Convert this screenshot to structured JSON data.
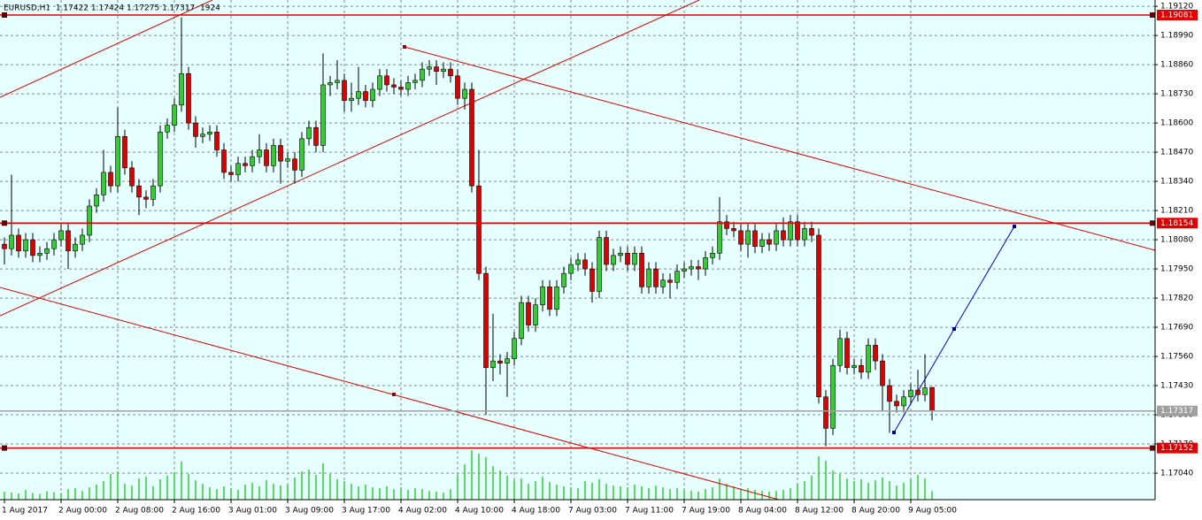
{
  "chart_data": {
    "type": "candlestick",
    "title": "EURUSD,H1  1.17422 1.17424 1.17275 1.17317  1924",
    "background": "#e6ffff",
    "grid": true,
    "grid_color": "#7f8c8c",
    "up_color": "#32cd32",
    "down_color": "#e00000",
    "volume_color": "#32cd32",
    "ylim": [
      1.16922,
      1.19148
    ],
    "yticks": [
      {
        "value": 1.1912,
        "label": "1.19120"
      },
      {
        "value": 1.1899,
        "label": "1.18990"
      },
      {
        "value": 1.1886,
        "label": "1.18860"
      },
      {
        "value": 1.1873,
        "label": "1.18730"
      },
      {
        "value": 1.186,
        "label": "1.18600"
      },
      {
        "value": 1.1847,
        "label": "1.18470"
      },
      {
        "value": 1.1834,
        "label": "1.18340"
      },
      {
        "value": 1.1821,
        "label": "1.18210"
      },
      {
        "value": 1.1808,
        "label": "1.18080"
      },
      {
        "value": 1.1795,
        "label": "1.17950"
      },
      {
        "value": 1.1782,
        "label": "1.17820"
      },
      {
        "value": 1.1769,
        "label": "1.17690"
      },
      {
        "value": 1.1756,
        "label": "1.17560"
      },
      {
        "value": 1.1743,
        "label": "1.17430"
      },
      {
        "value": 1.173,
        "label": "1.17300"
      },
      {
        "value": 1.1717,
        "label": "1.17170"
      },
      {
        "value": 1.1704,
        "label": "1.17040"
      }
    ],
    "hlines": [
      {
        "value": 1.19081,
        "color": "#e00000"
      },
      {
        "value": 1.18154,
        "color": "#e00000"
      },
      {
        "value": 1.17152,
        "color": "#e00000"
      },
      {
        "value": 1.17317,
        "color": "#a0a0a0"
      }
    ],
    "categories": [
      "1 Aug 2017",
      null,
      null,
      null,
      null,
      null,
      null,
      null,
      "2 Aug 00:00",
      null,
      null,
      null,
      null,
      null,
      null,
      null,
      "2 Aug 08:00",
      null,
      null,
      null,
      null,
      null,
      null,
      null,
      "2 Aug 16:00",
      null,
      null,
      null,
      null,
      null,
      null,
      null,
      "3 Aug 01:00",
      null,
      null,
      null,
      null,
      null,
      null,
      null,
      "3 Aug 09:00",
      null,
      null,
      null,
      null,
      null,
      null,
      null,
      "3 Aug 17:00",
      null,
      null,
      null,
      null,
      null,
      null,
      null,
      "4 Aug 02:00",
      null,
      null,
      null,
      null,
      null,
      null,
      null,
      "4 Aug 10:00",
      null,
      null,
      null,
      null,
      null,
      null,
      null,
      "4 Aug 18:00",
      null,
      null,
      null,
      null,
      null,
      null,
      null,
      "7 Aug 03:00",
      null,
      null,
      null,
      null,
      null,
      null,
      null,
      "7 Aug 11:00",
      null,
      null,
      null,
      null,
      null,
      null,
      null,
      "7 Aug 19:00",
      null,
      null,
      null,
      null,
      null,
      null,
      null,
      "8 Aug 04:00",
      null,
      null,
      null,
      null,
      null,
      null,
      null,
      "8 Aug 12:00",
      null,
      null,
      null,
      null,
      null,
      null,
      null,
      "8 Aug 20:00",
      null,
      null,
      null,
      null,
      null,
      null,
      null,
      "9 Aug 05:00",
      null,
      null,
      null
    ],
    "open": [
      1.1806,
      1.1804,
      1.181,
      1.1803,
      1.1808,
      1.1801,
      1.1802,
      1.1804,
      1.1808,
      1.1812,
      1.1803,
      1.1806,
      1.181,
      1.1823,
      1.1828,
      1.1838,
      1.1832,
      1.1854,
      1.184,
      1.1832,
      1.1827,
      1.1826,
      1.1832,
      1.1856,
      1.1859,
      1.1868,
      1.1882,
      1.186,
      1.1854,
      1.1855,
      1.1856,
      1.1848,
      1.1838,
      1.1837,
      1.1842,
      1.1841,
      1.1845,
      1.1848,
      1.1841,
      1.185,
      1.1843,
      1.1844,
      1.1839,
      1.1853,
      1.1858,
      1.185,
      1.1877,
      1.1878,
      1.1879,
      1.187,
      1.1871,
      1.1874,
      1.187,
      1.1875,
      1.1881,
      1.1877,
      1.1876,
      1.1875,
      1.1878,
      1.1879,
      1.1884,
      1.1885,
      1.1883,
      1.1884,
      1.1881,
      1.1871,
      1.1875,
      1.1832,
      1.1793,
      1.1751,
      1.1754,
      1.1753,
      1.1755,
      1.1764,
      1.178,
      1.177,
      1.1779,
      1.1787,
      1.1777,
      1.1787,
      1.1793,
      1.1797,
      1.1799,
      1.1795,
      1.1785,
      1.1809,
      1.1797,
      1.1801,
      1.1802,
      1.1797,
      1.1802,
      1.1787,
      1.1795,
      1.1787,
      1.179,
      1.1789,
      1.1794,
      1.1795,
      1.1796,
      1.1795,
      1.18,
      1.1802,
      1.1816,
      1.1813,
      1.1812,
      1.1806,
      1.1812,
      1.1805,
      1.1808,
      1.1806,
      1.1812,
      1.1808,
      1.1816,
      1.1808,
      1.1813,
      1.181,
      1.1738,
      1.1724,
      1.1752,
      1.1764,
      1.1751,
      1.1752,
      1.1749,
      1.1761,
      1.1754,
      1.1743,
      1.1736,
      1.1734,
      1.1738,
      1.1741,
      1.1739,
      1.17422
    ],
    "high": [
      1.1809,
      1.1837,
      1.1813,
      1.1811,
      1.1811,
      1.1805,
      1.1807,
      1.1811,
      1.1815,
      1.1815,
      1.1809,
      1.1813,
      1.1826,
      1.1831,
      1.1848,
      1.1841,
      1.1867,
      1.1857,
      1.1843,
      1.1835,
      1.183,
      1.1835,
      1.1859,
      1.1862,
      1.1871,
      1.1907,
      1.1885,
      1.1863,
      1.1858,
      1.1859,
      1.1859,
      1.1851,
      1.1841,
      1.1845,
      1.1845,
      1.1848,
      1.1855,
      1.1851,
      1.1853,
      1.1853,
      1.1847,
      1.1847,
      1.1856,
      1.1861,
      1.1861,
      1.1891,
      1.1881,
      1.1888,
      1.1882,
      1.1878,
      1.1885,
      1.1877,
      1.1878,
      1.1884,
      1.1884,
      1.188,
      1.1879,
      1.1881,
      1.1882,
      1.1887,
      1.1888,
      1.1888,
      1.1887,
      1.1887,
      1.1884,
      1.1878,
      1.1878,
      1.1848,
      1.1796,
      1.1775,
      1.1757,
      1.1758,
      1.1767,
      1.1783,
      1.1783,
      1.1782,
      1.179,
      1.179,
      1.179,
      1.1796,
      1.18,
      1.1802,
      1.1802,
      1.1798,
      1.1812,
      1.1812,
      1.1804,
      1.1805,
      1.1805,
      1.1805,
      1.1805,
      1.1798,
      1.1798,
      1.1793,
      1.1793,
      1.1797,
      1.1798,
      1.1799,
      1.1799,
      1.1803,
      1.1805,
      1.1827,
      1.1819,
      1.1816,
      1.1815,
      1.1815,
      1.1815,
      1.1811,
      1.1811,
      1.1815,
      1.1818,
      1.1819,
      1.1819,
      1.1816,
      1.1816,
      1.1813,
      1.1741,
      1.1755,
      1.1768,
      1.1767,
      1.1755,
      1.1755,
      1.1764,
      1.1764,
      1.1757,
      1.1746,
      1.1739,
      1.1741,
      1.1744,
      1.175,
      1.1757,
      1.17424
    ],
    "low": [
      1.1797,
      1.1801,
      1.18,
      1.18,
      1.1798,
      1.1798,
      1.1799,
      1.1801,
      1.1805,
      1.1795,
      1.18,
      1.1803,
      1.1807,
      1.182,
      1.1825,
      1.1829,
      1.1829,
      1.1837,
      1.1829,
      1.1819,
      1.1822,
      1.1823,
      1.1829,
      1.1853,
      1.1856,
      1.1865,
      1.1857,
      1.1849,
      1.1851,
      1.1852,
      1.1845,
      1.1835,
      1.1834,
      1.1834,
      1.1838,
      1.1838,
      1.1842,
      1.1838,
      1.1838,
      1.1833,
      1.184,
      1.1833,
      1.1836,
      1.185,
      1.1847,
      1.1847,
      1.1872,
      1.1875,
      1.1865,
      1.1865,
      1.1868,
      1.1867,
      1.1867,
      1.1872,
      1.1874,
      1.1873,
      1.1872,
      1.1872,
      1.1875,
      1.1876,
      1.1881,
      1.1877,
      1.188,
      1.1878,
      1.1868,
      1.1866,
      1.1829,
      1.179,
      1.173,
      1.1745,
      1.1748,
      1.1738,
      1.1752,
      1.1761,
      1.1767,
      1.1767,
      1.1776,
      1.1774,
      1.1774,
      1.1784,
      1.179,
      1.1794,
      1.1792,
      1.178,
      1.1782,
      1.1794,
      1.1794,
      1.1798,
      1.1794,
      1.1794,
      1.1784,
      1.1784,
      1.1784,
      1.1784,
      1.1782,
      1.1786,
      1.1791,
      1.1792,
      1.179,
      1.1792,
      1.1797,
      1.1799,
      1.181,
      1.1809,
      1.1803,
      1.18,
      1.1802,
      1.1802,
      1.1803,
      1.1803,
      1.1805,
      1.1805,
      1.1805,
      1.1805,
      1.1807,
      1.1735,
      1.1716,
      1.1721,
      1.1749,
      1.1748,
      1.1748,
      1.1746,
      1.1746,
      1.175,
      1.1732,
      1.1722,
      1.1731,
      1.1731,
      1.1735,
      1.1736,
      1.1736,
      1.17275
    ],
    "close": [
      1.1804,
      1.181,
      1.1803,
      1.1808,
      1.1801,
      1.1802,
      1.1804,
      1.1808,
      1.1812,
      1.1803,
      1.1806,
      1.181,
      1.1823,
      1.1828,
      1.1838,
      1.1832,
      1.1854,
      1.184,
      1.1832,
      1.1827,
      1.1826,
      1.1832,
      1.1856,
      1.1859,
      1.1868,
      1.1882,
      1.186,
      1.1854,
      1.1855,
      1.1856,
      1.1848,
      1.1838,
      1.1837,
      1.1842,
      1.1841,
      1.1845,
      1.1848,
      1.1841,
      1.185,
      1.1843,
      1.1844,
      1.1839,
      1.1853,
      1.1858,
      1.185,
      1.1877,
      1.1878,
      1.1879,
      1.187,
      1.1871,
      1.1874,
      1.187,
      1.1875,
      1.1881,
      1.1877,
      1.1876,
      1.1875,
      1.1878,
      1.1879,
      1.1884,
      1.1885,
      1.1883,
      1.1884,
      1.1881,
      1.1871,
      1.1875,
      1.1832,
      1.1793,
      1.1751,
      1.1754,
      1.1753,
      1.1755,
      1.1764,
      1.178,
      1.177,
      1.1779,
      1.1787,
      1.1777,
      1.1787,
      1.1793,
      1.1797,
      1.1799,
      1.1795,
      1.1785,
      1.1809,
      1.1797,
      1.1801,
      1.1802,
      1.1797,
      1.1802,
      1.1787,
      1.1795,
      1.1787,
      1.179,
      1.1789,
      1.1794,
      1.1795,
      1.1796,
      1.1795,
      1.18,
      1.1802,
      1.1816,
      1.1813,
      1.1812,
      1.1806,
      1.1812,
      1.1805,
      1.1808,
      1.1806,
      1.1812,
      1.1808,
      1.1816,
      1.1808,
      1.1813,
      1.181,
      1.1738,
      1.1724,
      1.1752,
      1.1764,
      1.1751,
      1.1752,
      1.1749,
      1.1761,
      1.1754,
      1.1743,
      1.1736,
      1.1734,
      1.1738,
      1.1741,
      1.1739,
      1.1742,
      1.17317
    ],
    "volume": [
      1800,
      1600,
      1400,
      2200,
      1500,
      1300,
      1900,
      1700,
      1500,
      2400,
      2600,
      2000,
      2800,
      3400,
      4200,
      5800,
      6400,
      3600,
      3200,
      4800,
      5200,
      3000,
      4600,
      5400,
      6200,
      8600,
      5800,
      4400,
      3600,
      2800,
      2400,
      3000,
      2600,
      2200,
      3400,
      3800,
      3000,
      4400,
      3600,
      3200,
      3400,
      5000,
      6400,
      6800,
      5600,
      8200,
      5800,
      4600,
      4200,
      3600,
      3000,
      3400,
      2800,
      2600,
      3000,
      2400,
      2800,
      2200,
      2600,
      2400,
      2000,
      1800,
      1600,
      2400,
      5600,
      8000,
      11200,
      10400,
      9600,
      7600,
      6600,
      5400,
      4400,
      4800,
      3600,
      4200,
      5200,
      4000,
      3400,
      3000,
      2800,
      2600,
      4200,
      3800,
      4600,
      3600,
      3200,
      3000,
      2800,
      3400,
      3000,
      2600,
      3200,
      2800,
      2400,
      2600,
      2200,
      2000,
      1800,
      2400,
      2800,
      4800,
      3600,
      3000,
      2400,
      2600,
      2200,
      2000,
      1800,
      2000,
      2200,
      2600,
      3600,
      4200,
      5400,
      9800,
      8800,
      6600,
      5800,
      4800,
      4200,
      4600,
      3800,
      4400,
      5000,
      4200,
      3200,
      3800,
      4600,
      5600,
      4800,
      1924
    ]
  }
}
